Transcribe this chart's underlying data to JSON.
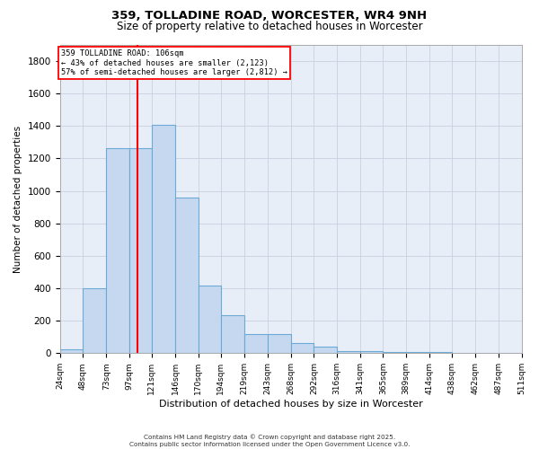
{
  "title": "359, TOLLADINE ROAD, WORCESTER, WR4 9NH",
  "subtitle": "Size of property relative to detached houses in Worcester",
  "xlabel": "Distribution of detached houses by size in Worcester",
  "ylabel": "Number of detached properties",
  "footer_line1": "Contains HM Land Registry data © Crown copyright and database right 2025.",
  "footer_line2": "Contains public sector information licensed under the Open Government Licence v3.0.",
  "bin_edges": [
    24,
    48,
    73,
    97,
    121,
    146,
    170,
    194,
    219,
    243,
    268,
    292,
    316,
    341,
    365,
    389,
    414,
    438,
    462,
    487,
    511
  ],
  "bar_heights": [
    25,
    400,
    1265,
    1265,
    1410,
    960,
    415,
    235,
    120,
    120,
    65,
    40,
    15,
    15,
    5,
    5,
    10,
    0,
    0,
    0
  ],
  "bar_color": "#c5d8f0",
  "bar_edge_color": "#6aaad4",
  "grid_color": "#c8d0e0",
  "background_color": "#e8eef8",
  "red_line_x": 106,
  "annotation_line1": "359 TOLLADINE ROAD: 106sqm",
  "annotation_line2": "← 43% of detached houses are smaller (2,123)",
  "annotation_line3": "57% of semi-detached houses are larger (2,812) →",
  "ylim": [
    0,
    1900
  ],
  "yticks": [
    0,
    200,
    400,
    600,
    800,
    1000,
    1200,
    1400,
    1600,
    1800
  ]
}
